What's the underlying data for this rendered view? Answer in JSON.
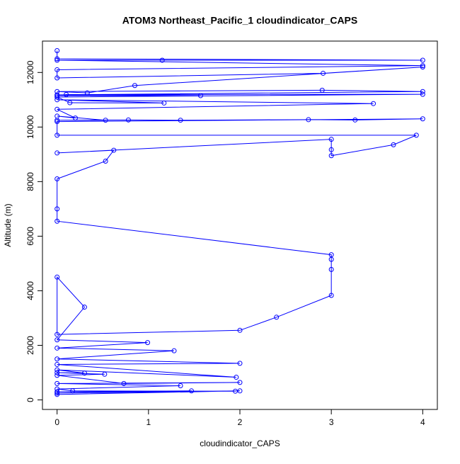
{
  "chart_data": {
    "type": "line",
    "title": "ATOM3 Northeast_Pacific_1 cloudindicator_CAPS",
    "xlabel": "cloudindicator_CAPS",
    "ylabel": "Altitude (m)",
    "color": "#0000ff",
    "markers": true,
    "xlim": [
      -0.16,
      4.16
    ],
    "ylim": [
      -350,
      13150
    ],
    "xticks": [
      0,
      1,
      2,
      3,
      4
    ],
    "yticks": [
      0,
      2000,
      4000,
      6000,
      8000,
      10000,
      12000
    ],
    "x": [
      0,
      2,
      0,
      1.47,
      0,
      1.95,
      0.17,
      0,
      1.35,
      0,
      2,
      0.73,
      0,
      0.52,
      0,
      0.3,
      0,
      1.96,
      0,
      2,
      0,
      1.28,
      0,
      0.99,
      0,
      0.3,
      0,
      0,
      2,
      2.4,
      3,
      3,
      3,
      3,
      0,
      0,
      0,
      0.53,
      0.62,
      0,
      3,
      3,
      3,
      3.68,
      3.93,
      0,
      0,
      4,
      3.26,
      2.75,
      1.35,
      0.78,
      0,
      0.53,
      0,
      0.2,
      0,
      3.46,
      0,
      1.17,
      0.14,
      0,
      4,
      0.1,
      0,
      1.57,
      0,
      4,
      2.9,
      0,
      0.33,
      0.85,
      4,
      2.91,
      0,
      0,
      4,
      0,
      1.15,
      4,
      0,
      0
    ],
    "values": [
      200,
      330,
      250,
      330,
      300,
      320,
      330,
      400,
      520,
      600,
      640,
      600,
      900,
      940,
      1000,
      980,
      1100,
      830,
      1300,
      1340,
      1500,
      1800,
      1900,
      2100,
      2200,
      3400,
      4500,
      2400,
      2550,
      3030,
      3830,
      4780,
      5150,
      5320,
      6550,
      7000,
      8100,
      8750,
      9150,
      9050,
      9550,
      9170,
      8950,
      9350,
      9700,
      9700,
      10200,
      10300,
      10260,
      10270,
      10250,
      10260,
      10250,
      10250,
      10400,
      10330,
      10650,
      10860,
      11000,
      10880,
      10890,
      11100,
      11200,
      11190,
      11150,
      11150,
      11180,
      11300,
      11350,
      11300,
      11250,
      11520,
      12200,
      11970,
      11800,
      12100,
      12250,
      12450,
      12450,
      12450,
      12500,
      12800
    ]
  }
}
